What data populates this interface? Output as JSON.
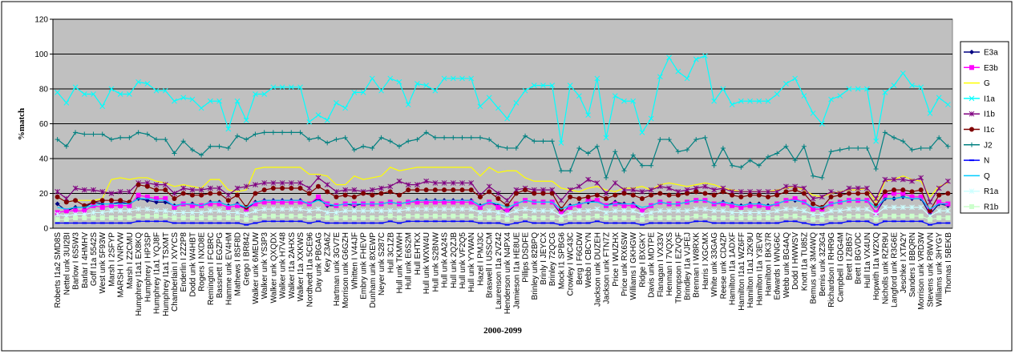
{
  "chart_data": {
    "type": "line",
    "y_label": "%match",
    "x_label": "2000-2099",
    "ylim": [
      0,
      120
    ],
    "yticks": [
      0,
      20,
      40,
      60,
      80,
      100,
      120
    ],
    "grid": true,
    "legend": "right",
    "categories": [
      "Roberts I1a2 SMD8S",
      "Nettel unk 3UI2BI",
      "Barlow I 6S5W3",
      "Barlar I 4HMHV",
      "Goff I1a 5542S",
      "West unk 5F93W",
      "Marsh I 2SFYP",
      "MARSH I VNRVW",
      "Marsh I Z2CMU",
      "Humphrey I1a1 EX8KQ",
      "Humphrey I HP3SP",
      "Humphrey I1a1 YQJ8F",
      "Humphrey I1a1 TSXMT",
      "Chamberlain I XVYCS",
      "Enderlin I 2Z2P8",
      "Dodd unk W4HBT",
      "Rogers I NXD8E",
      "Remington I FCBRC",
      "Bassnett I EGZPG",
      "Hamme unk EV4HM",
      "Mathews I 8SF8D",
      "Grego I BR842",
      "Walker unk 6MEUW",
      "Walker unk YS3P3",
      "Walker unk QXQDX",
      "Walker unk H7V48",
      "Walker I1a 2AHXS",
      "Walker I1a XXKWS",
      "Nordtvedt I1a 5CE96",
      "Day unk PBGAG",
      "Key Z3A6Z",
      "Hartman unk 3GV7E",
      "Morrison unk G6GZH",
      "Whitten I V44JF",
      "Embry unk FHEVP",
      "Dunham unk 8XEWP",
      "Neyer unk S287C",
      "Hull 3C1ZB",
      "Hull unk TKMWH",
      "Hull unk E6S2M",
      "Hull EHTKX",
      "Hull unk WXW4U",
      "Hull unk S2BNW",
      "Hull unk AA24S",
      "Hull unk 2QZJB",
      "Hull unk VF2Q5",
      "Hull unk YYWAN",
      "Hazel I PMJ3C",
      "Braswell I USSCM",
      "Laurenson I1a 2VZ42",
      "Henderson unk N4PX4",
      "Jamieson I1a HE8UE",
      "Pillips DSDFE",
      "Brinley unk 82BPQ",
      "Brinly I JEYCX",
      "Brinley 72QCG",
      "Mock I1 SPBG6",
      "Crowley I WC43C",
      "Berg I F6GDW",
      "Webb I CBCYN",
      "Jackson unk DUZEH",
      "Jackson unk FTN7Z",
      "Price I WUZHX",
      "Price unk RX6SW",
      "Williams I GKHGW",
      "Ridge I BXGKY",
      "Davis unk MDTPE",
      "Flanagan I VX33V",
      "Henman I 7VQXS",
      "Thompson I EZVQF",
      "Brindley I1a VJFEJ",
      "Brennan I W8RXK",
      "Harris I XGCMX",
      "White unk 33GAG",
      "Reese unk CD4ZP",
      "Hamilton I1a 1ADXF",
      "Hamilton I1a1 WZ6FF",
      "Hamilton I1a1 J2K9U",
      "Hamilton I1a Y3EVR",
      "Hamilton I BK37R",
      "Edwards I WNG6C",
      "Webb unk BG4AQ",
      "Dodd I HWWSV",
      "Knott I1a TU85Z",
      "Bemus unk 3M4WQ",
      "Bemis unk 3Z3G4",
      "Richardson I RHR9G",
      "Campbell I GDG4M",
      "Brett I ZBB57",
      "Brett I BGVDC",
      "Hull I1a VX4UN",
      "Hopwith I1a W2XQ",
      "Nicholls unk RZR9U",
      "Langford unk R3G6E",
      "Jeschke I XTA2Y",
      "Sanders I BBQRN",
      "Morrison unk VRD3W",
      "Stevens unk P8WVN",
      "Williams unk 3HYGY",
      "Thomas I 5BEKB"
    ],
    "series": [
      {
        "name": "E3a",
        "color": "#000080",
        "marker": "diamond",
        "values": [
          14,
          10,
          12,
          12,
          15,
          14,
          14,
          15,
          14,
          17,
          16,
          15,
          15,
          13,
          14,
          14,
          13,
          15,
          15,
          13,
          14,
          11,
          15,
          16,
          16,
          16,
          16,
          16,
          14,
          17,
          13,
          13,
          14,
          13,
          14,
          14,
          14,
          15,
          14,
          15,
          16,
          16,
          16,
          16,
          16,
          16,
          16,
          13,
          15,
          13,
          9,
          14,
          16,
          15,
          15,
          15,
          8,
          13,
          14,
          15,
          16,
          13,
          15,
          14,
          14,
          10,
          13,
          15,
          14,
          14,
          15,
          16,
          16,
          14,
          15,
          14,
          13,
          14,
          14,
          13,
          14,
          16,
          16,
          15,
          11,
          11,
          14,
          15,
          16,
          16,
          16,
          9,
          17,
          17,
          18,
          17,
          17,
          8,
          14,
          13
        ]
      },
      {
        "name": "E3b",
        "color": "#ff00ff",
        "marker": "square",
        "values": [
          9,
          10,
          10,
          10,
          13,
          12,
          13,
          13,
          13,
          19,
          18,
          17,
          17,
          12,
          14,
          13,
          13,
          14,
          14,
          12,
          13,
          11,
          14,
          15,
          15,
          15,
          15,
          15,
          14,
          18,
          14,
          13,
          14,
          14,
          14,
          14,
          14,
          15,
          14,
          15,
          15,
          15,
          15,
          15,
          15,
          15,
          15,
          12,
          15,
          12,
          10,
          14,
          16,
          15,
          15,
          15,
          9,
          12,
          13,
          16,
          16,
          13,
          14,
          13,
          13,
          10,
          13,
          15,
          14,
          14,
          15,
          16,
          16,
          14,
          14,
          13,
          12,
          13,
          13,
          12,
          14,
          16,
          17,
          15,
          11,
          11,
          14,
          15,
          16,
          16,
          16,
          9,
          19,
          20,
          20,
          18,
          18,
          10,
          15,
          14
        ]
      },
      {
        "name": "G",
        "color": "#ffff00",
        "marker": "none",
        "values": [
          18,
          15,
          16,
          16,
          16,
          17,
          28,
          29,
          28,
          29,
          29,
          27,
          26,
          24,
          25,
          24,
          23,
          28,
          28,
          22,
          21,
          22,
          34,
          35,
          35,
          35,
          35,
          35,
          31,
          31,
          30,
          25,
          25,
          30,
          28,
          29,
          30,
          35,
          33,
          34,
          35,
          35,
          35,
          35,
          35,
          35,
          35,
          30,
          35,
          32,
          33,
          33,
          29,
          27,
          27,
          27,
          23,
          22,
          21,
          23,
          24,
          22,
          21,
          23,
          23,
          24,
          22,
          25,
          26,
          25,
          24,
          25,
          26,
          25,
          23,
          22,
          21,
          21,
          21,
          21,
          22,
          23,
          24,
          22,
          19,
          18,
          20,
          21,
          22,
          22,
          23,
          15,
          27,
          28,
          30,
          28,
          27,
          18,
          24,
          26
        ]
      },
      {
        "name": "I1a",
        "color": "#00ffff",
        "marker": "x",
        "values": [
          78,
          72,
          81,
          77,
          77,
          70,
          80,
          77,
          77,
          84,
          83,
          79,
          79,
          73,
          75,
          74,
          69,
          73,
          73,
          57,
          73,
          62,
          77,
          77,
          81,
          81,
          81,
          81,
          61,
          65,
          62,
          72,
          69,
          78,
          78,
          86,
          79,
          86,
          84,
          71,
          83,
          82,
          79,
          86,
          86,
          86,
          86,
          70,
          75,
          69,
          63,
          72,
          79,
          82,
          82,
          82,
          49,
          82,
          76,
          65,
          86,
          52,
          76,
          73,
          73,
          55,
          63,
          87,
          98,
          90,
          86,
          97,
          99,
          73,
          80,
          71,
          73,
          73,
          73,
          73,
          77,
          83,
          86,
          76,
          66,
          60,
          74,
          76,
          80,
          80,
          80,
          50,
          78,
          82,
          89,
          82,
          81,
          66,
          75,
          71
        ]
      },
      {
        "name": "I1b",
        "color": "#800080",
        "marker": "star",
        "values": [
          21,
          17,
          23,
          22,
          22,
          21,
          20,
          21,
          21,
          26,
          26,
          25,
          25,
          20,
          23,
          22,
          22,
          23,
          23,
          19,
          23,
          24,
          25,
          26,
          26,
          26,
          26,
          26,
          23,
          29,
          25,
          21,
          22,
          22,
          21,
          22,
          23,
          24,
          27,
          25,
          25,
          27,
          26,
          26,
          26,
          26,
          26,
          19,
          24,
          20,
          16,
          22,
          23,
          22,
          22,
          22,
          16,
          22,
          24,
          28,
          26,
          20,
          26,
          22,
          22,
          21,
          22,
          24,
          23,
          21,
          22,
          23,
          24,
          22,
          23,
          21,
          21,
          21,
          21,
          21,
          21,
          24,
          24,
          23,
          17,
          18,
          21,
          20,
          23,
          23,
          23,
          17,
          28,
          28,
          28,
          27,
          29,
          15,
          23,
          27
        ]
      },
      {
        "name": "I1c",
        "color": "#800000",
        "marker": "circle",
        "values": [
          18,
          15,
          16,
          13,
          15,
          16,
          16,
          16,
          15,
          25,
          24,
          22,
          22,
          17,
          20,
          19,
          19,
          20,
          20,
          16,
          19,
          12,
          20,
          22,
          23,
          23,
          23,
          23,
          20,
          24,
          21,
          18,
          19,
          18,
          20,
          19,
          20,
          21,
          19,
          22,
          22,
          22,
          22,
          22,
          22,
          22,
          22,
          18,
          21,
          17,
          13,
          20,
          22,
          20,
          20,
          20,
          11,
          18,
          17,
          18,
          19,
          17,
          19,
          20,
          19,
          17,
          19,
          20,
          19,
          19,
          20,
          21,
          20,
          19,
          21,
          19,
          18,
          19,
          19,
          18,
          19,
          21,
          22,
          20,
          14,
          12,
          18,
          19,
          20,
          20,
          20,
          13,
          21,
          22,
          22,
          21,
          22,
          10,
          19,
          20
        ]
      },
      {
        "name": "J2",
        "color": "#008080",
        "marker": "plus",
        "values": [
          51,
          47,
          55,
          54,
          54,
          54,
          51,
          52,
          52,
          55,
          54,
          51,
          51,
          43,
          50,
          45,
          42,
          47,
          47,
          46,
          53,
          51,
          54,
          55,
          55,
          55,
          55,
          55,
          51,
          52,
          49,
          51,
          52,
          45,
          47,
          46,
          52,
          50,
          47,
          50,
          51,
          55,
          52,
          52,
          52,
          52,
          52,
          52,
          51,
          47,
          46,
          46,
          53,
          50,
          50,
          50,
          33,
          33,
          46,
          43,
          47,
          29,
          44,
          33,
          42,
          36,
          36,
          51,
          51,
          44,
          45,
          51,
          52,
          36,
          46,
          36,
          35,
          39,
          36,
          41,
          43,
          47,
          39,
          47,
          30,
          29,
          44,
          45,
          46,
          46,
          46,
          34,
          55,
          52,
          50,
          45,
          46,
          46,
          52,
          47
        ]
      },
      {
        "name": "N",
        "color": "#0000ff",
        "marker": "dash",
        "values": [
          3,
          3,
          3,
          3,
          3,
          3,
          3,
          3,
          3,
          4,
          4,
          4,
          4,
          3,
          3,
          3,
          3,
          3,
          3,
          3,
          3,
          2,
          3,
          4,
          4,
          4,
          4,
          4,
          3,
          4,
          3,
          3,
          3,
          3,
          3,
          3,
          3,
          4,
          3,
          4,
          4,
          4,
          4,
          4,
          4,
          4,
          4,
          3,
          3,
          3,
          2,
          3,
          4,
          3,
          3,
          3,
          2,
          3,
          3,
          3,
          4,
          3,
          3,
          3,
          3,
          2,
          3,
          3,
          3,
          3,
          3,
          4,
          4,
          3,
          3,
          3,
          3,
          3,
          3,
          3,
          3,
          4,
          4,
          3,
          2,
          2,
          3,
          3,
          4,
          4,
          4,
          2,
          4,
          4,
          4,
          4,
          4,
          2,
          3,
          3
        ]
      },
      {
        "name": "Q",
        "color": "#00ccff",
        "marker": "none",
        "values": [
          12,
          11,
          12,
          12,
          13,
          14,
          14,
          14,
          14,
          17,
          17,
          16,
          16,
          13,
          14,
          14,
          13,
          15,
          15,
          13,
          14,
          12,
          15,
          16,
          16,
          16,
          16,
          16,
          14,
          16,
          14,
          13,
          14,
          14,
          14,
          14,
          14,
          15,
          14,
          15,
          16,
          16,
          16,
          16,
          16,
          16,
          16,
          13,
          15,
          14,
          12,
          14,
          16,
          15,
          15,
          15,
          11,
          13,
          14,
          15,
          15,
          13,
          14,
          14,
          14,
          12,
          13,
          15,
          14,
          14,
          15,
          16,
          16,
          14,
          15,
          14,
          13,
          14,
          14,
          13,
          14,
          16,
          16,
          15,
          12,
          12,
          14,
          15,
          16,
          16,
          16,
          12,
          17,
          17,
          18,
          17,
          17,
          11,
          14,
          14
        ]
      },
      {
        "name": "R1a",
        "color": "#ccffff",
        "marker": "star",
        "values": [
          8,
          7,
          8,
          8,
          9,
          9,
          10,
          10,
          10,
          11,
          11,
          10,
          10,
          9,
          9,
          9,
          9,
          10,
          10,
          9,
          9,
          8,
          10,
          11,
          11,
          11,
          11,
          11,
          10,
          11,
          9,
          9,
          10,
          10,
          10,
          10,
          10,
          10,
          10,
          11,
          11,
          11,
          11,
          11,
          11,
          11,
          11,
          9,
          10,
          9,
          8,
          10,
          11,
          10,
          10,
          10,
          7,
          9,
          10,
          10,
          11,
          9,
          10,
          10,
          10,
          8,
          9,
          10,
          10,
          10,
          10,
          11,
          11,
          10,
          10,
          9,
          9,
          9,
          9,
          9,
          10,
          11,
          11,
          10,
          8,
          8,
          10,
          10,
          11,
          11,
          11,
          8,
          12,
          12,
          12,
          12,
          12,
          7,
          10,
          10
        ]
      },
      {
        "name": "R1b",
        "color": "#ccffcc",
        "marker": "square",
        "values": [
          5,
          5,
          6,
          6,
          6,
          6,
          6,
          6,
          6,
          7,
          7,
          7,
          7,
          6,
          6,
          6,
          6,
          6,
          6,
          6,
          6,
          5,
          6,
          7,
          7,
          7,
          7,
          7,
          6,
          7,
          6,
          6,
          6,
          6,
          6,
          6,
          6,
          7,
          6,
          7,
          7,
          7,
          7,
          7,
          7,
          7,
          7,
          6,
          6,
          6,
          5,
          6,
          7,
          6,
          6,
          6,
          5,
          6,
          6,
          6,
          7,
          6,
          6,
          6,
          6,
          5,
          6,
          6,
          6,
          6,
          6,
          7,
          7,
          6,
          6,
          6,
          6,
          6,
          6,
          6,
          6,
          7,
          7,
          6,
          5,
          5,
          6,
          6,
          7,
          7,
          7,
          5,
          7,
          7,
          7,
          7,
          7,
          5,
          6,
          6
        ]
      }
    ]
  }
}
